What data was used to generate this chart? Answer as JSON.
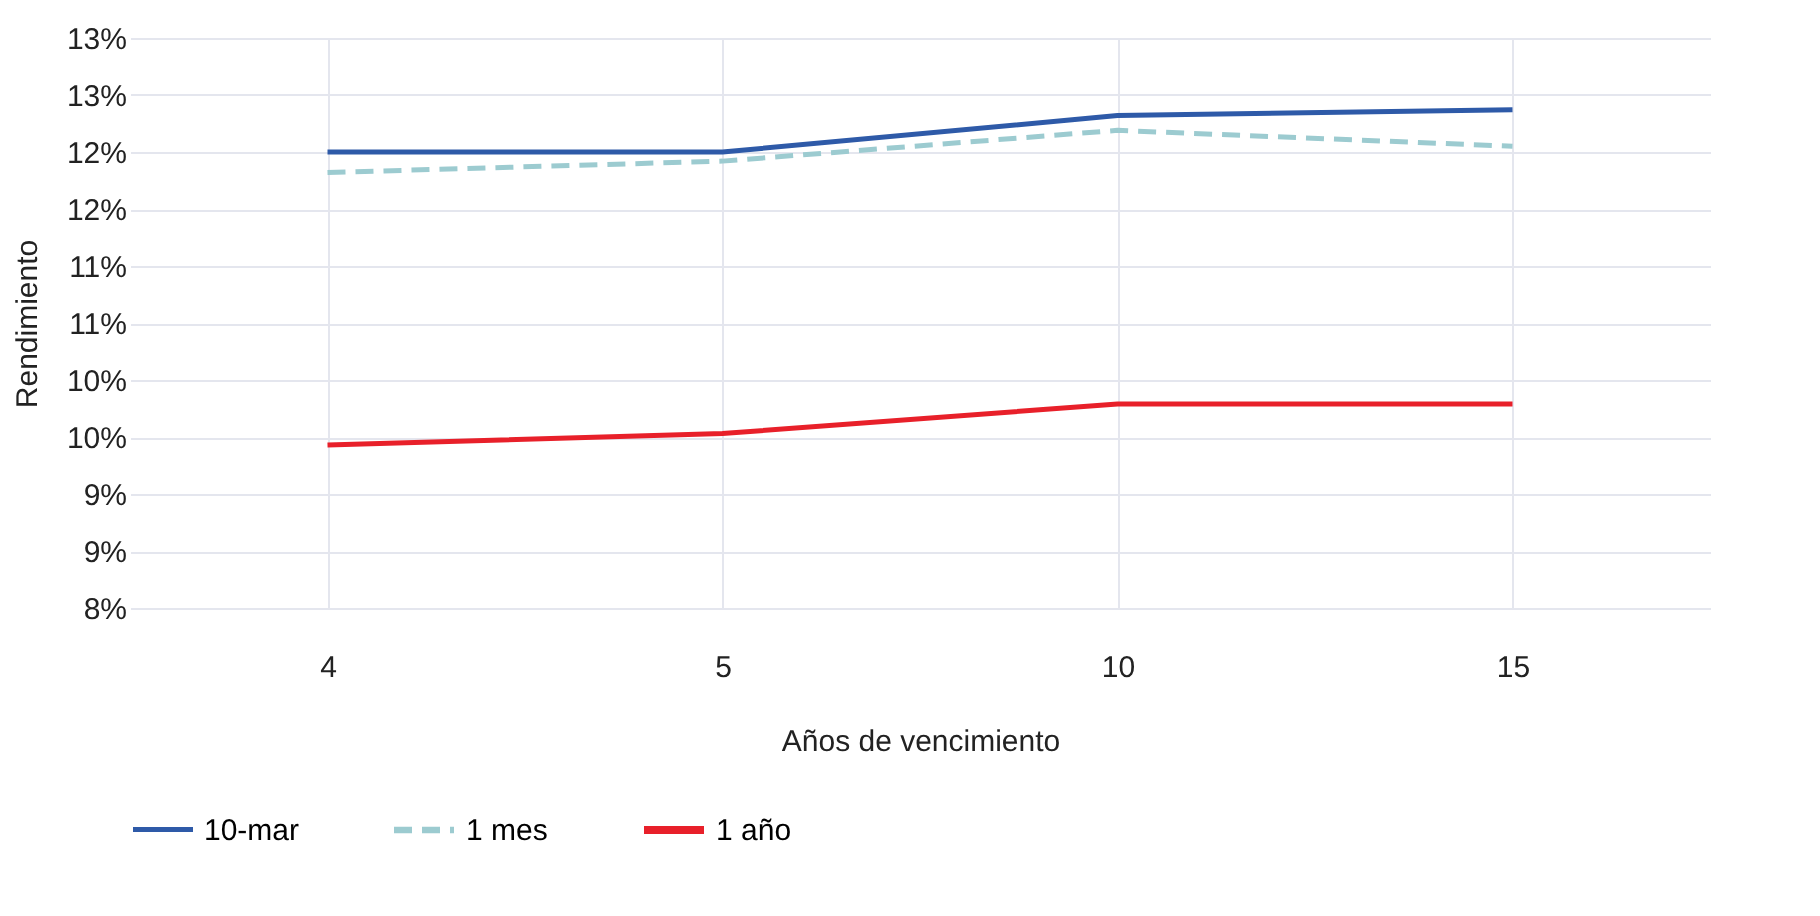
{
  "chart_data": {
    "type": "line",
    "xlabel": "Años de vencimiento",
    "ylabel": "Rendimiento",
    "categories": [
      "4",
      "5",
      "10",
      "15"
    ],
    "series": [
      {
        "name": "10-mar",
        "color": "#2e5aa8",
        "line_style": "solid",
        "values": [
          12.0,
          12.0,
          12.32,
          12.37
        ]
      },
      {
        "name": "1 mes",
        "color": "#9ccbd0",
        "line_style": "dashed",
        "values": [
          11.82,
          11.92,
          12.19,
          12.05
        ]
      },
      {
        "name": "1 año",
        "color": "#e8202a",
        "line_style": "solid",
        "values": [
          9.43,
          9.53,
          9.79,
          9.79
        ]
      }
    ],
    "ylim": [
      8,
      13
    ],
    "yticks": [
      {
        "value": 8,
        "label": "8%"
      },
      {
        "value": 8.5,
        "label": "9%"
      },
      {
        "value": 9,
        "label": "9%"
      },
      {
        "value": 9.5,
        "label": "10%"
      },
      {
        "value": 10,
        "label": "10%"
      },
      {
        "value": 10.5,
        "label": "11%"
      },
      {
        "value": 11,
        "label": "11%"
      },
      {
        "value": 11.5,
        "label": "12%"
      },
      {
        "value": 12,
        "label": "12%"
      },
      {
        "value": 12.5,
        "label": "13%"
      },
      {
        "value": 13,
        "label": "13%"
      }
    ],
    "grid": true,
    "legend": "bottom",
    "marker": "none"
  }
}
